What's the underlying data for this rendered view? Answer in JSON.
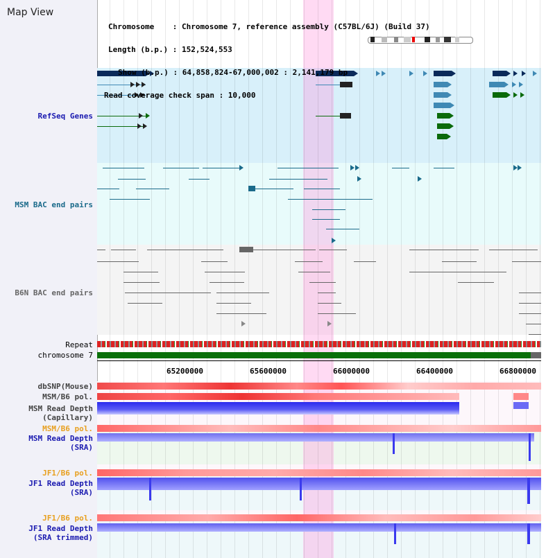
{
  "app": {
    "title": "Map View"
  },
  "header": {
    "chromosome_line": "Chromosome    : Chromosome 7, reference assembly (C57BL/6J) (Build 37)",
    "length_line": "Length (b.p.) : 152,524,553",
    "show_line": "Show (b.p.) : 64,858,824-67,000,002 : 2,141,179 bp",
    "coverage_line": "Read coverage check span : 10,000"
  },
  "tracks": {
    "refseq": "RefSeq Genes",
    "msm_bac": "MSM BAC end pairs",
    "b6n_bac": "B6N BAC end pairs",
    "repeat": "Repeat",
    "chromosome": "chromosome 7",
    "dbsnp": "dbSNP(Mouse)",
    "msm_b6_pol_1": "MSM/B6 pol.",
    "msm_read_depth_cap": "MSM Read Depth\n(Capillary)",
    "msm_b6_pol_2": "MSM/B6 pol.",
    "msm_read_depth_sra": "MSM Read Depth\n(SRA)",
    "jf1_b6_pol_1": "JF1/B6 pol.",
    "jf1_read_depth_sra": "JF1 Read Depth\n(SRA)",
    "jf1_b6_pol_2": "JF1/B6 pol.",
    "jf1_read_depth_trim": "JF1 Read Depth\n(SRA trimmed)"
  },
  "axis": {
    "ticks": [
      "65200000",
      "65600000",
      "66000000",
      "66400000",
      "66800000"
    ]
  },
  "colors": {
    "refseq_dark": "#0a2a5a",
    "refseq_mid": "#3f89b4",
    "refseq_green": "#0a6a0a",
    "msm_teal": "#1a6a8a",
    "b6n_gray": "#666666",
    "repeat_red": "#dd2222",
    "chrom_green": "#0a700a",
    "highlight_pink": "#ff96dc",
    "depth_blue": "#3333ee"
  }
}
